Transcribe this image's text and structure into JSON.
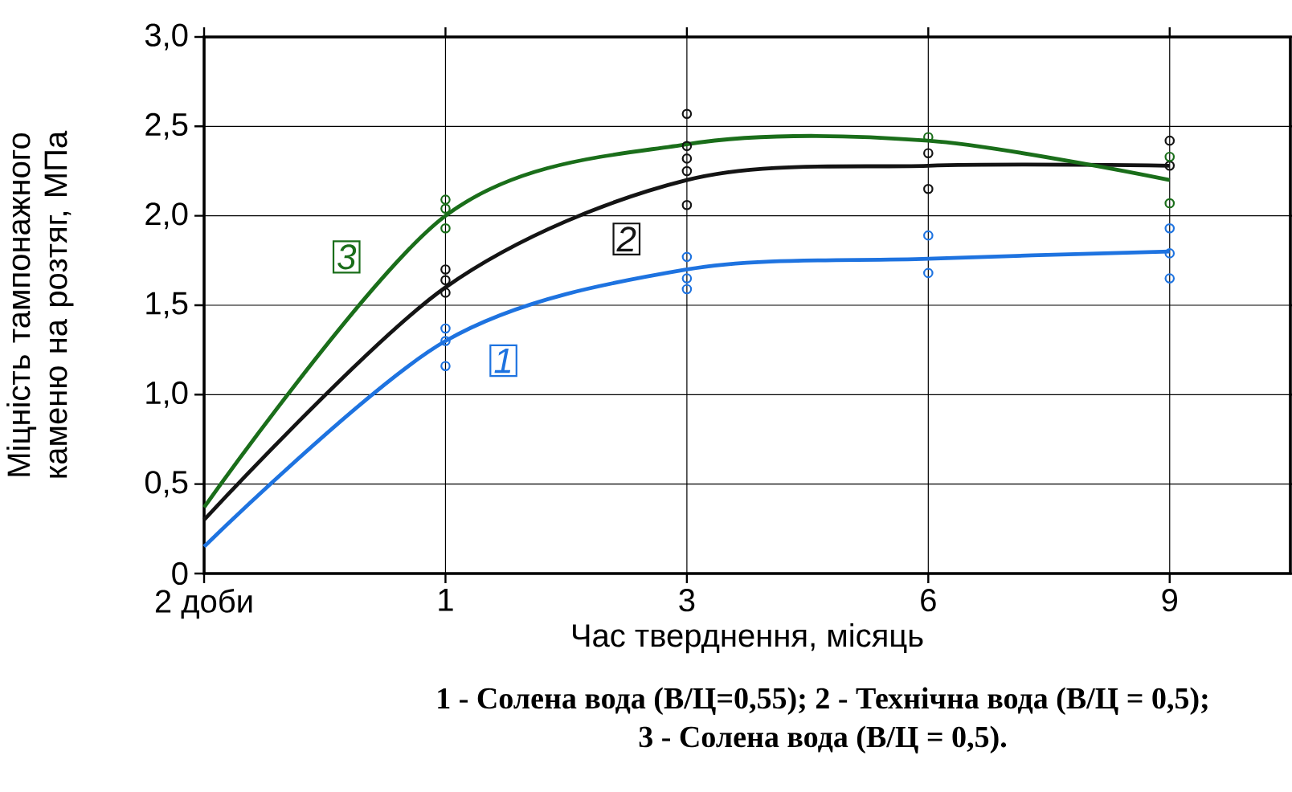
{
  "chart_data": {
    "type": "line",
    "xlabel": "Час тверднення, місяць",
    "ylabel": "Міцність тампонажного каменю на розтяг, МПа",
    "categories": [
      "2 доби",
      "1",
      "3",
      "6",
      "9"
    ],
    "ylim": [
      0,
      3
    ],
    "yticks": [
      0,
      {
        "value": 0.5,
        "label": "0,5"
      },
      {
        "value": 1,
        "label": "1,0"
      },
      {
        "value": 1.5,
        "label": "1,5"
      },
      {
        "value": 2,
        "label": "2,0"
      },
      {
        "value": 2.5,
        "label": "2,5"
      },
      {
        "value": 3,
        "label": "3,0"
      }
    ],
    "grid": true,
    "series": [
      {
        "name": "1",
        "color": "#1e73e0",
        "values": [
          0.15,
          1.3,
          1.7,
          1.76,
          1.8
        ]
      },
      {
        "name": "2",
        "color": "#141414",
        "values": [
          0.3,
          1.6,
          2.2,
          2.28,
          2.28
        ]
      },
      {
        "name": "3",
        "color": "#1a6e1a",
        "values": [
          0.37,
          2.0,
          2.4,
          2.42,
          2.2
        ]
      },
      {
        "type": "scatter",
        "marker": "circle",
        "color": "#1e73e0",
        "x": [
          "1",
          "1",
          "1",
          "3",
          "3",
          "3",
          "6",
          "6",
          "9",
          "9",
          "9"
        ],
        "values": [
          1.37,
          1.3,
          1.16,
          1.77,
          1.65,
          1.59,
          1.89,
          1.68,
          1.93,
          1.79,
          1.65
        ]
      },
      {
        "type": "scatter",
        "marker": "circle",
        "color": "#141414",
        "x": [
          "1",
          "1",
          "1",
          "3",
          "3",
          "3",
          "3",
          "3",
          "6",
          "6",
          "9",
          "9"
        ],
        "values": [
          1.7,
          1.64,
          1.57,
          2.57,
          2.39,
          2.32,
          2.25,
          2.06,
          2.35,
          2.15,
          2.42,
          2.28
        ]
      },
      {
        "type": "scatter",
        "marker": "circle",
        "color": "#1a6e1a",
        "x": [
          "1",
          "1",
          "1",
          "6",
          "9",
          "9"
        ],
        "values": [
          2.09,
          2.04,
          1.93,
          2.44,
          2.33,
          2.07
        ]
      }
    ],
    "annotations": [
      "1 - Солена вода (В/Ц=0,55); 2 - Технічна вода (В/Ц = 0,5);",
      "3 - Солена вода (В/Ц = 0,5)."
    ]
  }
}
